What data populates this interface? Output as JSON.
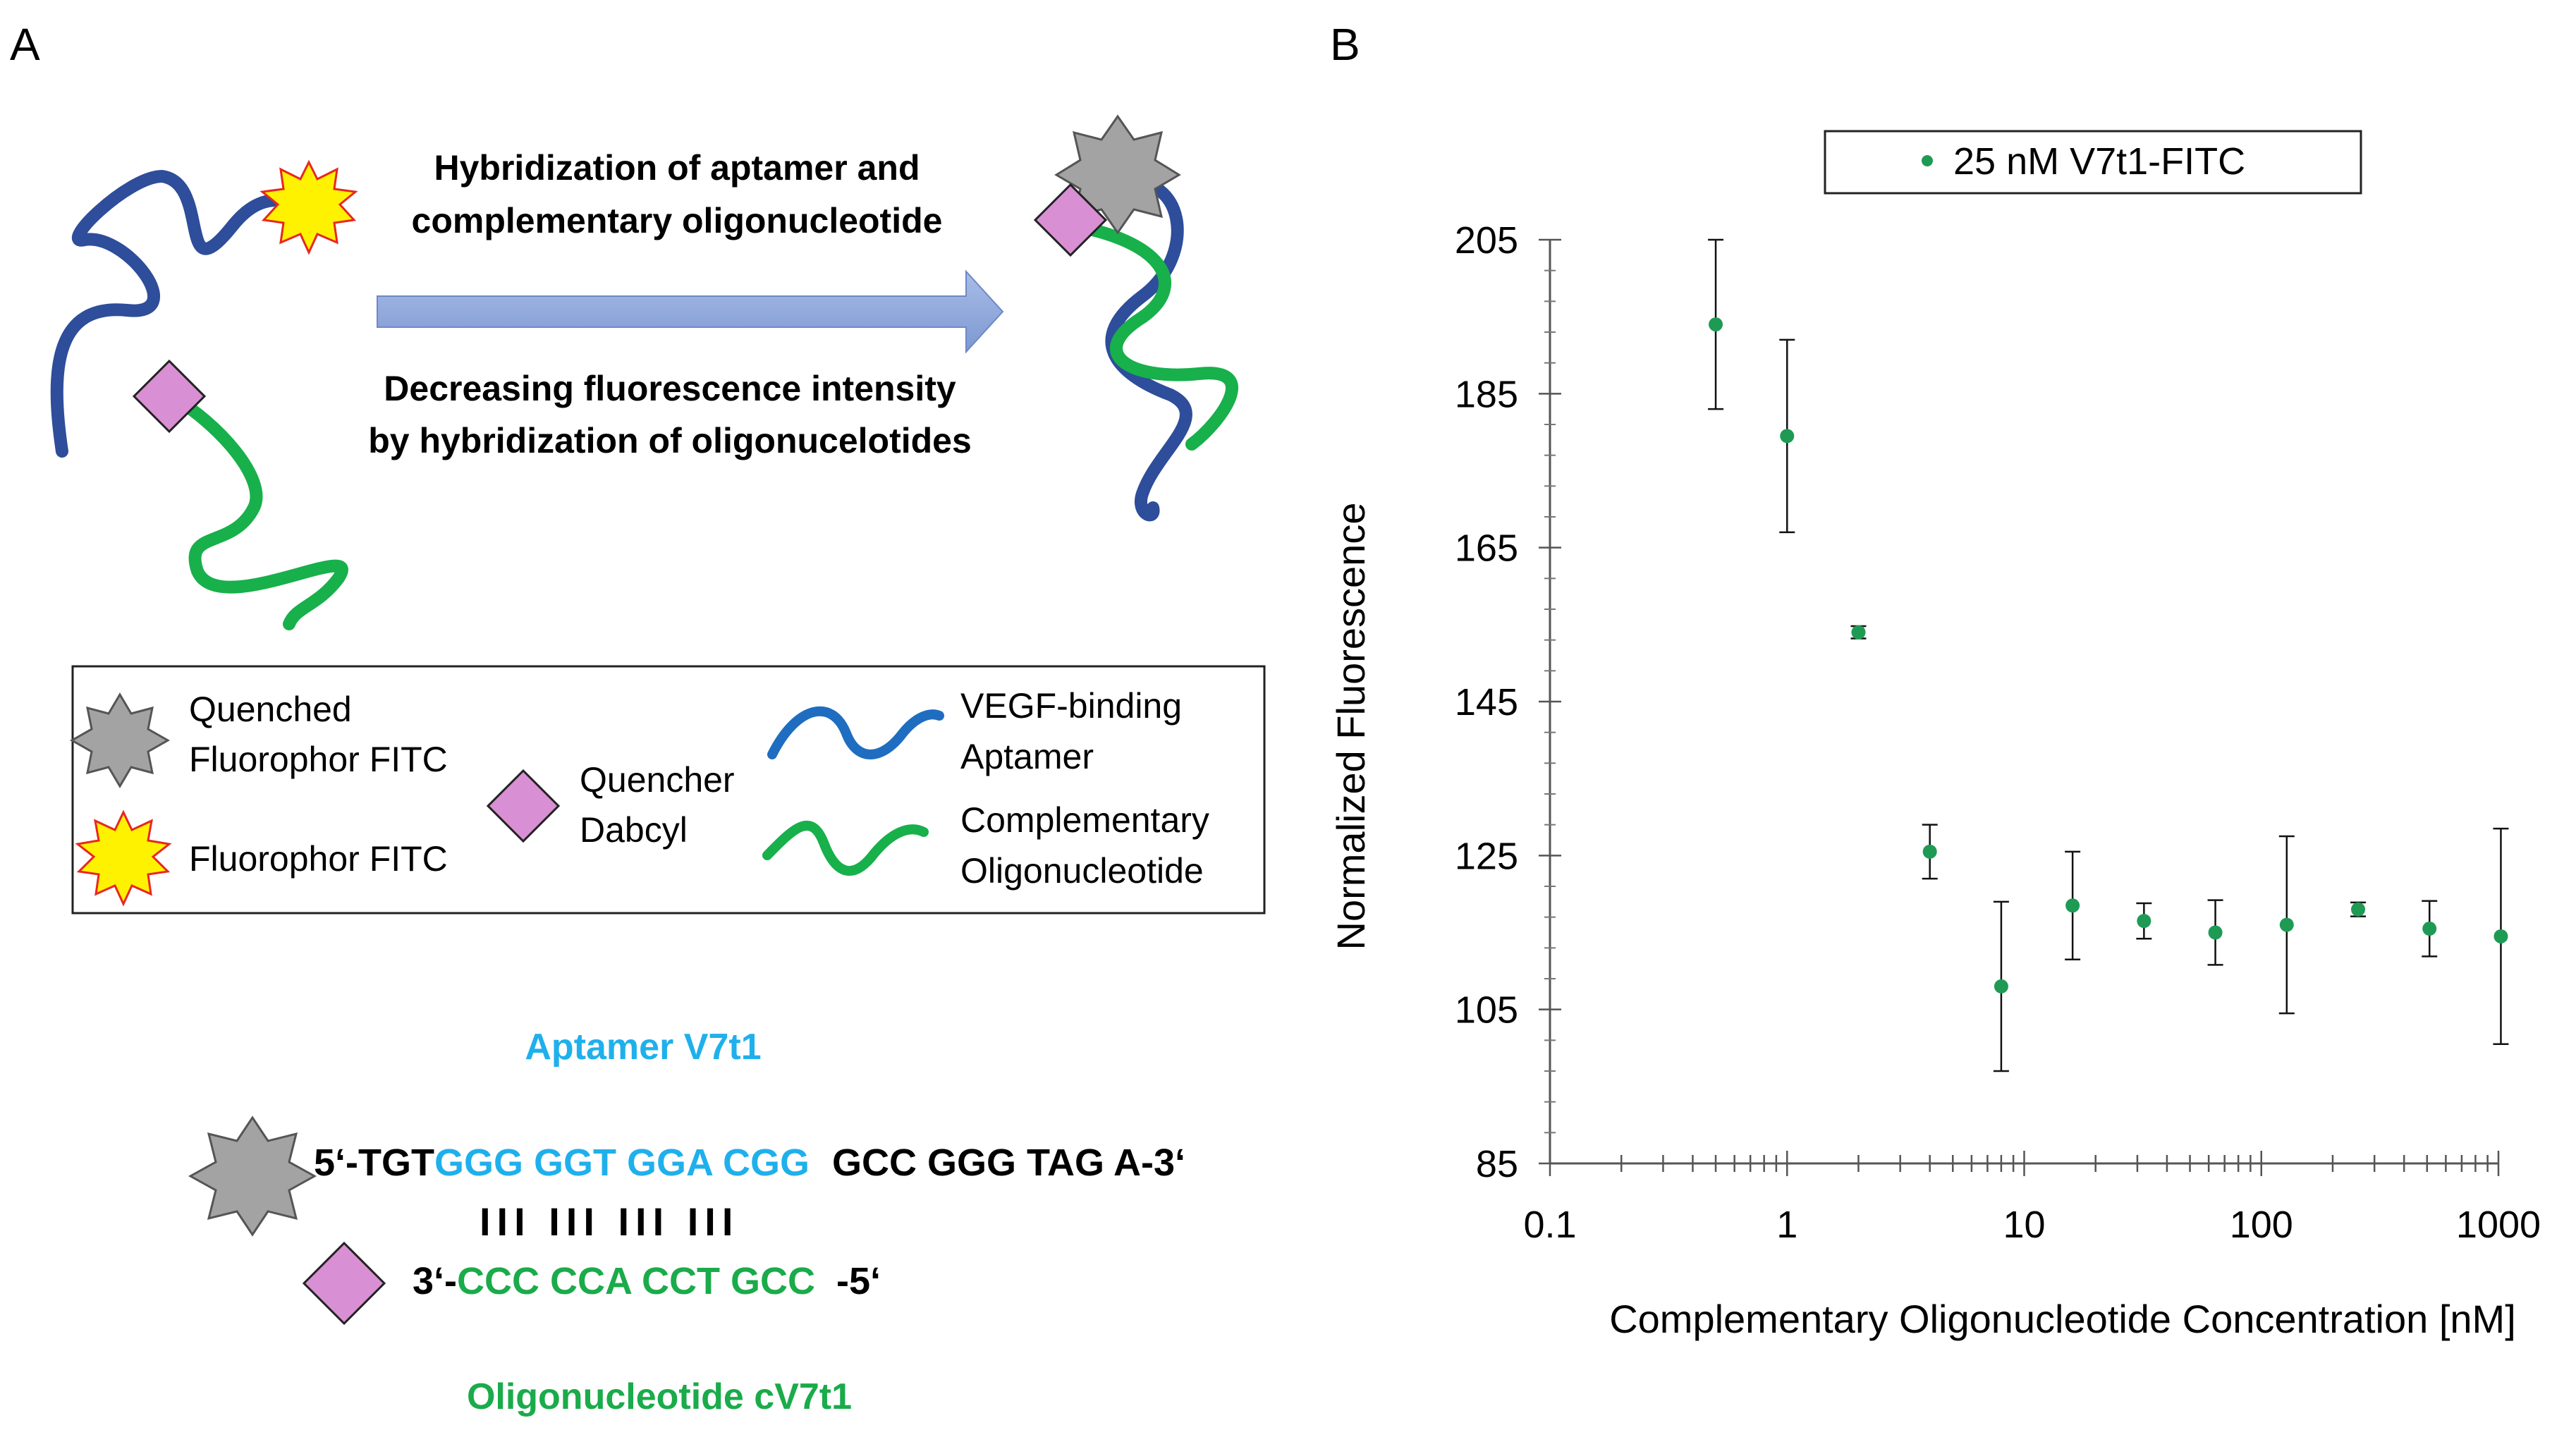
{
  "panel_a": {
    "label": "A",
    "arrow_text_top": [
      "Hybridization of aptamer and",
      "complementary oligonucleotide"
    ],
    "arrow_text_bottom": [
      "Decreasing fluorescence intensity",
      "by hybridization of oligonucelotides"
    ],
    "legend": {
      "quenched": [
        "Quenched",
        "Fluorophor FITC"
      ],
      "fluorophor": "Fluorophor FITC",
      "quencher": [
        "Quencher",
        "Dabcyl"
      ],
      "aptamer": [
        "VEGF-binding",
        "Aptamer"
      ],
      "complementary": [
        "Complementary",
        "Oligonucleotide"
      ]
    },
    "aptamer_title": "Aptamer V7t1",
    "seq_top_prefix": "5‘-TGT",
    "seq_top_match": "GGG GGT GGA CGG",
    "seq_top_suffix": "GCC GGG TAG A-3‘",
    "pairing": "III III III III",
    "seq_bottom_prefix": "3‘-",
    "seq_bottom_match": "CCC CCA CCT GCC",
    "seq_bottom_suffix": "-5‘",
    "oligo_title": "Oligonucleotide cV7t1",
    "colors": {
      "aptamer": "#2e4d9a",
      "oligo": "#17b04b",
      "blue_text": "#1fb0ec",
      "green_text": "#1aab4a",
      "quencher": "#d98fd3",
      "fluor": "#fff200",
      "quenched": "#a3a3a3",
      "arrow": "#8fa9dc"
    }
  },
  "panel_b": {
    "label": "B"
  },
  "chart_data": {
    "type": "scatter",
    "title": "",
    "legend": "25 nM V7t1-FITC",
    "legend_position": "top-center",
    "xlabel": "Complementary Oligonucleotide Concentration [nM]",
    "ylabel": "Normalized Fluorescence",
    "xscale": "log",
    "xlim": [
      0.1,
      1000
    ],
    "ylim": [
      85,
      205
    ],
    "x_ticks": [
      "0.1",
      "1",
      "10",
      "100",
      "1000"
    ],
    "y_ticks": [
      "85",
      "105",
      "125",
      "145",
      "165",
      "185",
      "205"
    ],
    "marker_color": "#1f9a55",
    "series": [
      {
        "name": "25 nM V7t1-FITC",
        "x": [
          0.5,
          1,
          2,
          4,
          8,
          16,
          32,
          64,
          128,
          256,
          512,
          1024
        ],
        "y": [
          194,
          179.5,
          154,
          125.5,
          108,
          118.5,
          116.5,
          115,
          116,
          118,
          115.5,
          114.5
        ],
        "yerr": [
          11,
          12.5,
          0.8,
          3.5,
          11,
          7,
          2.3,
          4.2,
          11.5,
          0.9,
          3.6,
          14
        ]
      }
    ]
  }
}
